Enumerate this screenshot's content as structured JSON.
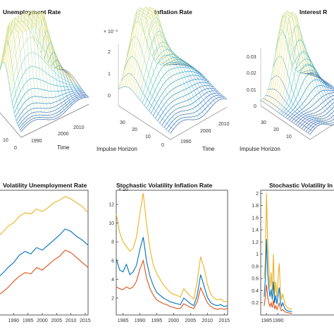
{
  "chart_data": [
    {
      "type": "surface",
      "title": "Unemployment Rate",
      "xlabel": "Time",
      "x_ticks": [
        "1990",
        "2000",
        "2010"
      ],
      "y_ticks": [
        "10",
        "0"
      ],
      "colormap": [
        "#3b3f9f",
        "#2c85c9",
        "#3fbcc4",
        "#9ed9b6",
        "#f0e68c"
      ]
    },
    {
      "type": "surface",
      "title": "Inflation Rate",
      "xlabel": "Time",
      "ylabel": "Impulse Horizon",
      "exponent_label": "× 10⁻³",
      "z_ticks": [
        "2",
        "1",
        "0"
      ],
      "x_ticks": [
        "1990",
        "2000",
        "2010"
      ],
      "y_ticks": [
        "30",
        "20",
        "10",
        "0"
      ],
      "colormap": [
        "#3b3f9f",
        "#2c85c9",
        "#3fbcc4",
        "#9ed9b6",
        "#f0e68c"
      ]
    },
    {
      "type": "surface",
      "title": "Interest R",
      "ylabel": "Impulse Horizon",
      "z_ticks": [
        "0.03",
        "0.02",
        "0.01",
        "0"
      ],
      "y_ticks": [
        "30",
        "20",
        "10"
      ],
      "colormap": [
        "#3b3f9f",
        "#2c85c9",
        "#3fbcc4",
        "#9ed9b6",
        "#f0e68c"
      ]
    },
    {
      "type": "line",
      "title": "Volatility Unemployment Rate",
      "x_ticks": [
        "1990",
        "1995",
        "2000",
        "2005",
        "2010",
        "2015"
      ],
      "x": [
        1984,
        1986,
        1988,
        1990,
        1992,
        1994,
        1996,
        1998,
        2000,
        2002,
        2004,
        2006,
        2008,
        2010,
        2012,
        2014,
        2016
      ],
      "series": [
        {
          "color": "#edb120",
          "values": [
            0.62,
            0.66,
            0.71,
            0.74,
            0.79,
            0.82,
            0.81,
            0.85,
            0.83,
            0.86,
            0.9,
            0.92,
            0.95,
            0.93,
            0.9,
            0.87,
            0.82
          ]
        },
        {
          "color": "#0072bd",
          "values": [
            0.29,
            0.33,
            0.38,
            0.42,
            0.48,
            0.51,
            0.49,
            0.54,
            0.52,
            0.56,
            0.6,
            0.64,
            0.69,
            0.67,
            0.63,
            0.6,
            0.56
          ]
        },
        {
          "color": "#d95319",
          "values": [
            0.15,
            0.18,
            0.22,
            0.27,
            0.31,
            0.34,
            0.33,
            0.38,
            0.36,
            0.4,
            0.44,
            0.47,
            0.52,
            0.5,
            0.46,
            0.42,
            0.38
          ]
        }
      ],
      "xlim": [
        1984,
        2016
      ],
      "ylim": [
        0,
        1
      ]
    },
    {
      "type": "line",
      "title": "Stochastic Volatility Inflation Rate",
      "exponent_label": "× 10",
      "y_ticks": [
        "12",
        "10",
        "8",
        "6",
        "4",
        "2"
      ],
      "x_ticks": [
        "1985",
        "1990",
        "1995",
        "2000",
        "2005",
        "2010",
        "2015"
      ],
      "x": [
        1983,
        1984,
        1985,
        1986,
        1987,
        1988,
        1989,
        1990,
        1991,
        1992,
        1993,
        1994,
        1995,
        1996,
        1997,
        1998,
        1999,
        2000,
        2001,
        2002,
        2003,
        2004,
        2005,
        2006,
        2007,
        2008,
        2009,
        2010,
        2011,
        2012,
        2013,
        2014,
        2015,
        2016
      ],
      "series": [
        {
          "color": "#edb120",
          "values": [
            11.0,
            9.0,
            8.0,
            7.5,
            7.0,
            7.3,
            8.5,
            11.0,
            13.2,
            9.8,
            7.2,
            5.5,
            4.6,
            4.0,
            3.4,
            3.0,
            2.6,
            2.4,
            2.3,
            2.1,
            3.0,
            2.6,
            2.2,
            1.9,
            3.8,
            6.4,
            5.3,
            3.5,
            2.4,
            2.0,
            1.8,
            1.9,
            1.6,
            1.7
          ]
        },
        {
          "color": "#0072bd",
          "values": [
            6.2,
            5.0,
            4.8,
            5.6,
            4.5,
            4.8,
            5.5,
            7.2,
            8.5,
            5.9,
            4.3,
            3.3,
            2.6,
            2.3,
            2.0,
            1.8,
            1.6,
            1.5,
            1.4,
            1.3,
            2.0,
            1.7,
            1.4,
            1.2,
            2.3,
            4.5,
            3.3,
            2.1,
            1.5,
            1.3,
            1.2,
            1.3,
            1.1,
            1.2
          ]
        },
        {
          "color": "#d95319",
          "values": [
            3.2,
            3.0,
            2.9,
            3.2,
            3.0,
            3.2,
            3.8,
            5.1,
            6.0,
            4.1,
            3.0,
            2.3,
            1.8,
            1.6,
            1.4,
            1.3,
            1.1,
            1.0,
            0.9,
            0.9,
            1.4,
            1.2,
            1.0,
            0.9,
            1.6,
            3.1,
            2.3,
            1.5,
            1.1,
            0.9,
            0.8,
            0.9,
            0.8,
            0.9
          ]
        }
      ],
      "xlim": [
        1983,
        2016
      ],
      "ylim": [
        0.2,
        13.5
      ]
    },
    {
      "type": "line",
      "title": "Stochastic Volatility In",
      "y_ticks": [
        "2",
        "1.8",
        "1.6",
        "1.4",
        "1.2",
        "1",
        "0.8",
        "0.6",
        "0.4",
        "0.2"
      ],
      "x_ticks": [
        "1985",
        "1990"
      ],
      "x": [
        1984,
        1984.5,
        1985,
        1985.5,
        1986,
        1986.5,
        1987,
        1987.5,
        1988,
        1988.5,
        1989,
        1989.5,
        1990,
        1990.5,
        1991,
        1991.5,
        1992,
        1993,
        1994,
        1995,
        1996
      ],
      "series": [
        {
          "color": "#edb120",
          "values": [
            0.6,
            0.9,
            2.0,
            1.2,
            0.8,
            0.45,
            0.7,
            0.4,
            1.0,
            0.3,
            0.55,
            0.3,
            0.6,
            0.85,
            0.4,
            0.25,
            0.35,
            0.18,
            0.12,
            0.1,
            0.1
          ]
        },
        {
          "color": "#0072bd",
          "values": [
            0.3,
            0.6,
            1.25,
            0.7,
            0.45,
            0.3,
            0.42,
            0.25,
            0.55,
            0.2,
            0.32,
            0.18,
            0.32,
            0.45,
            0.22,
            0.14,
            0.2,
            0.1,
            0.07,
            0.06,
            0.06
          ]
        },
        {
          "color": "#d95319",
          "values": [
            0.15,
            0.3,
            0.5,
            0.3,
            0.2,
            0.14,
            0.2,
            0.12,
            0.25,
            0.1,
            0.15,
            0.09,
            0.14,
            0.2,
            0.1,
            0.07,
            0.09,
            0.05,
            0.04,
            0.03,
            0.03
          ]
        }
      ],
      "xlim": [
        1982.5,
        2016
      ],
      "ylim": [
        0,
        2.05
      ]
    }
  ]
}
